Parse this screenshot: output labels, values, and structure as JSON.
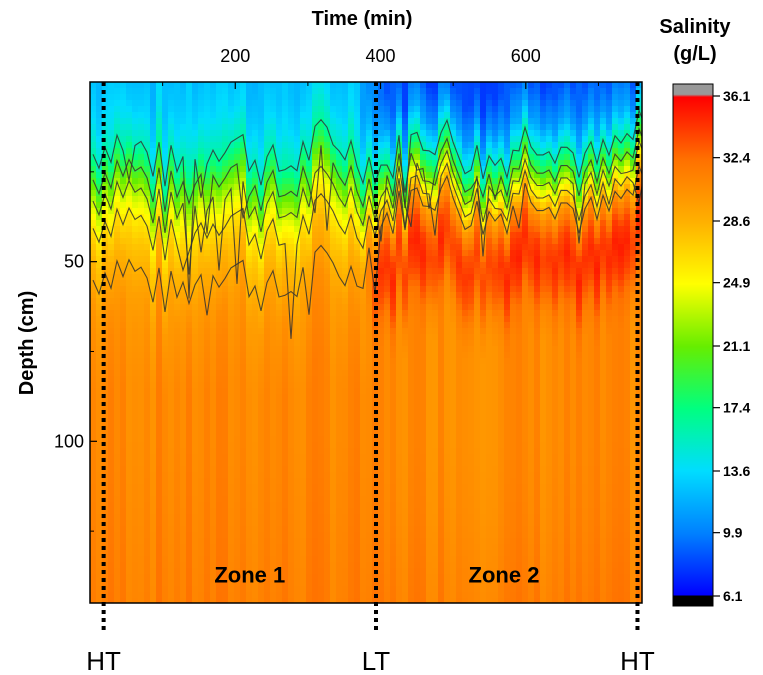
{
  "chart_data": {
    "type": "heatmap",
    "title": "",
    "xlabel": "Time (min)",
    "ylabel": "Depth (cm)",
    "x_ticks": [
      200,
      400,
      600
    ],
    "y_ticks": [
      50,
      100
    ],
    "xlim": [
      0,
      760
    ],
    "ylim": [
      145,
      0
    ],
    "colorbar": {
      "title_line1": "Salinity",
      "title_line2": "(g/L)",
      "ticks": [
        36.1,
        32.4,
        28.6,
        24.9,
        21.1,
        17.4,
        13.6,
        9.9,
        6.1
      ],
      "range": [
        6.1,
        36.1
      ],
      "colors": [
        "#000000",
        "#0000ff",
        "#0080ff",
        "#00ddff",
        "#00ff80",
        "#66ee00",
        "#ffff00",
        "#ffb000",
        "#ff7000",
        "#ff0000",
        "#999999"
      ]
    },
    "profile": {
      "depths": [
        0,
        10,
        20,
        28,
        35,
        42,
        48,
        55,
        62,
        70,
        85,
        100,
        120,
        145
      ],
      "zone1_salinity": [
        12.5,
        13.5,
        16.0,
        20.5,
        24.0,
        26.5,
        28.0,
        29.0,
        30.0,
        30.5,
        31.0,
        31.0,
        31.2,
        31.5
      ],
      "zone2_salinity": [
        8.5,
        11.0,
        17.0,
        24.0,
        30.0,
        33.5,
        34.5,
        33.5,
        31.5,
        30.8,
        30.8,
        30.8,
        31.0,
        31.5
      ]
    },
    "tide_markers": [
      {
        "label": "HT",
        "time": 5
      },
      {
        "label": "LT",
        "time": 380
      },
      {
        "label": "HT",
        "time": 740
      }
    ],
    "zones": [
      {
        "label": "Zone 1",
        "time": 220,
        "depth": 137
      },
      {
        "label": "Zone 2",
        "time": 570,
        "depth": 137
      }
    ]
  }
}
